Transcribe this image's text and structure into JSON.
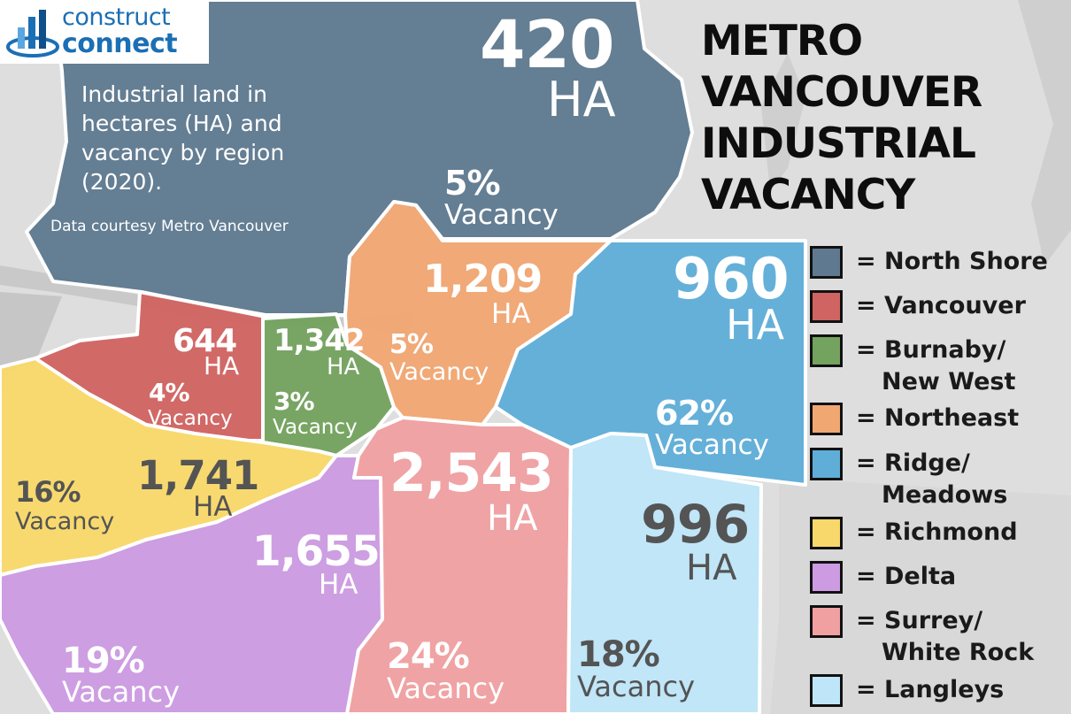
{
  "logo": {
    "line1": "construct",
    "line2": "connect",
    "mark": "building-bars"
  },
  "title": {
    "line1": "METRO",
    "line2": "VANCOUVER",
    "line3": "INDUSTRIAL",
    "line4": "VACANCY"
  },
  "description": "Industrial land in hectares (HA) and vacancy by region (2020).",
  "credit": "Data courtesy Metro Vancouver",
  "unit_ha": "HA",
  "vacancy_word": "Vacancy",
  "chart_data": {
    "type": "choropleth-map",
    "title": "METRO VANCOUVER INDUSTRIAL VACANCY",
    "year": "2020",
    "regions": [
      {
        "key": "north_shore",
        "name": "North Shore",
        "hectares": 420,
        "hectares_label": "420",
        "vacancy_pct": 5,
        "vacancy_label": "5%",
        "color": "#5f7a90"
      },
      {
        "key": "vancouver",
        "name": "Vancouver",
        "hectares": 644,
        "hectares_label": "644",
        "vacancy_pct": 4,
        "vacancy_label": "4%",
        "color": "#d06462"
      },
      {
        "key": "burnaby",
        "name": "Burnaby/ New West",
        "legend_line1": "= Burnaby/",
        "legend_line2": "New West",
        "hectares": 1342,
        "hectares_label": "1,342",
        "vacancy_pct": 3,
        "vacancy_label": "3%",
        "color": "#74a25f"
      },
      {
        "key": "northeast",
        "name": "Northeast",
        "hectares": 1209,
        "hectares_label": "1,209",
        "vacancy_pct": 5,
        "vacancy_label": "5%",
        "color": "#f0a772"
      },
      {
        "key": "ridge",
        "name": "Ridge/ Meadows",
        "legend_line1": "= Ridge/",
        "legend_line2": "Meadows",
        "hectares": 960,
        "hectares_label": "960",
        "vacancy_pct": 62,
        "vacancy_label": "62%",
        "color": "#5faed8"
      },
      {
        "key": "richmond",
        "name": "Richmond",
        "hectares": 1741,
        "hectares_label": "1,741",
        "vacancy_pct": 16,
        "vacancy_label": "16%",
        "color": "#f8d86a"
      },
      {
        "key": "delta",
        "name": "Delta",
        "hectares": 1655,
        "hectares_label": "1,655",
        "vacancy_pct": 19,
        "vacancy_label": "19%",
        "color": "#cc9be2"
      },
      {
        "key": "surrey",
        "name": "Surrey/ White Rock",
        "legend_line1": "= Surrey/",
        "legend_line2": "White Rock",
        "hectares": 2543,
        "hectares_label": "2,543",
        "vacancy_pct": 24,
        "vacancy_label": "24%",
        "color": "#f0a0a1"
      },
      {
        "key": "langleys",
        "name": "Langleys",
        "hectares": 996,
        "hectares_label": "996",
        "vacancy_pct": 18,
        "vacancy_label": "18%",
        "color": "#bfe6f8"
      }
    ]
  },
  "legend": [
    {
      "text": "= North Shore",
      "color": "#5f7a90"
    },
    {
      "text": "= Vancouver",
      "color": "#d06462"
    },
    {
      "text1": "= Burnaby/",
      "text2": "New West",
      "color": "#74a25f"
    },
    {
      "text": "= Northeast",
      "color": "#f0a772"
    },
    {
      "text1": "= Ridge/",
      "text2": "Meadows",
      "color": "#5faed8"
    },
    {
      "text": "= Richmond",
      "color": "#f8d86a"
    },
    {
      "text": "= Delta",
      "color": "#cc9be2"
    },
    {
      "text1": "= Surrey/",
      "text2": "White Rock",
      "color": "#f0a0a1"
    },
    {
      "text": "= Langleys",
      "color": "#bfe6f8"
    }
  ]
}
